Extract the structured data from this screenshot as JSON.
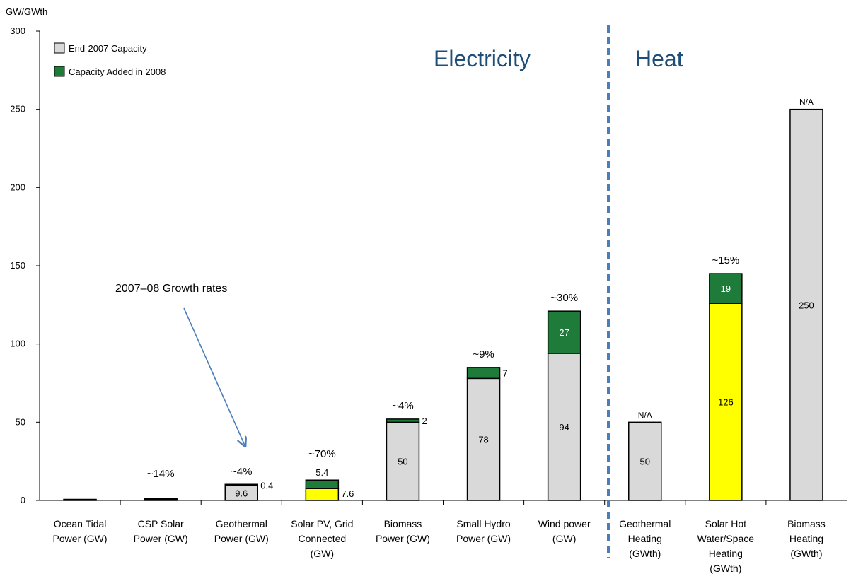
{
  "chart_data": {
    "type": "bar",
    "stacked": true,
    "ylabel": "GW/GWth",
    "ylim": [
      0,
      300
    ],
    "yticks": [
      0,
      50,
      100,
      150,
      200,
      250,
      300
    ],
    "grid": false,
    "legend_placement": "top-left",
    "series": [
      {
        "name": "End-2007 Capacity",
        "color": "#d9d9d9"
      },
      {
        "name": "Capacity Added in 2008",
        "color": "#1e7b3a"
      }
    ],
    "categories": [
      {
        "label": [
          "Ocean Tidal",
          "Power (GW)"
        ],
        "base": 0.3,
        "added": 0,
        "base_color": "#d9d9d9",
        "growth": "",
        "base_label": "",
        "added_label": "",
        "top_label": ""
      },
      {
        "label": [
          "CSP Solar",
          "Power (GW)"
        ],
        "base": 0.4,
        "added": 0.1,
        "base_color": "#d9d9d9",
        "growth": "~14%",
        "base_label": "",
        "added_label": "",
        "top_label": ""
      },
      {
        "label": [
          "Geothermal",
          "Power (GW)"
        ],
        "base": 9.6,
        "added": 0.4,
        "base_color": "#d9d9d9",
        "growth": "~4%",
        "base_label": "9.6",
        "added_label": "0.4",
        "top_label": ""
      },
      {
        "label": [
          "Solar PV, Grid",
          "Connected",
          "(GW)"
        ],
        "base": 7.6,
        "added": 5.4,
        "base_color": "#ffff00",
        "growth": "~70%",
        "base_label": "7.6",
        "added_label": "5.4",
        "top_label": ""
      },
      {
        "label": [
          "Biomass",
          "Power (GW)"
        ],
        "base": 50,
        "added": 2,
        "base_color": "#d9d9d9",
        "growth": "~4%",
        "base_label": "50",
        "added_label": "2",
        "top_label": ""
      },
      {
        "label": [
          "Small Hydro",
          "Power (GW)"
        ],
        "base": 78,
        "added": 7,
        "base_color": "#d9d9d9",
        "growth": "~9%",
        "base_label": "78",
        "added_label": "7",
        "top_label": ""
      },
      {
        "label": [
          "Wind power",
          "(GW)"
        ],
        "base": 94,
        "added": 27,
        "base_color": "#d9d9d9",
        "growth": "~30%",
        "base_label": "94",
        "added_label": "27",
        "top_label": ""
      },
      {
        "label": [
          "Geothermal",
          "Heating",
          "(GWth)"
        ],
        "base": 50,
        "added": 0,
        "base_color": "#d9d9d9",
        "growth": "",
        "base_label": "50",
        "added_label": "",
        "top_label": "N/A"
      },
      {
        "label": [
          "Solar Hot",
          "Water/Space",
          "Heating",
          "(GWth)"
        ],
        "base": 126,
        "added": 19,
        "base_color": "#ffff00",
        "growth": "~15%",
        "base_label": "126",
        "added_label": "19",
        "top_label": ""
      },
      {
        "label": [
          "Biomass",
          "Heating",
          "(GWth)"
        ],
        "base": 250,
        "added": 0,
        "base_color": "#d9d9d9",
        "growth": "",
        "base_label": "250",
        "added_label": "",
        "top_label": "N/A"
      }
    ],
    "annotations": {
      "section_electricity": "Electricity",
      "section_heat": "Heat",
      "growth_rates_note": "2007–08 Growth rates"
    }
  }
}
